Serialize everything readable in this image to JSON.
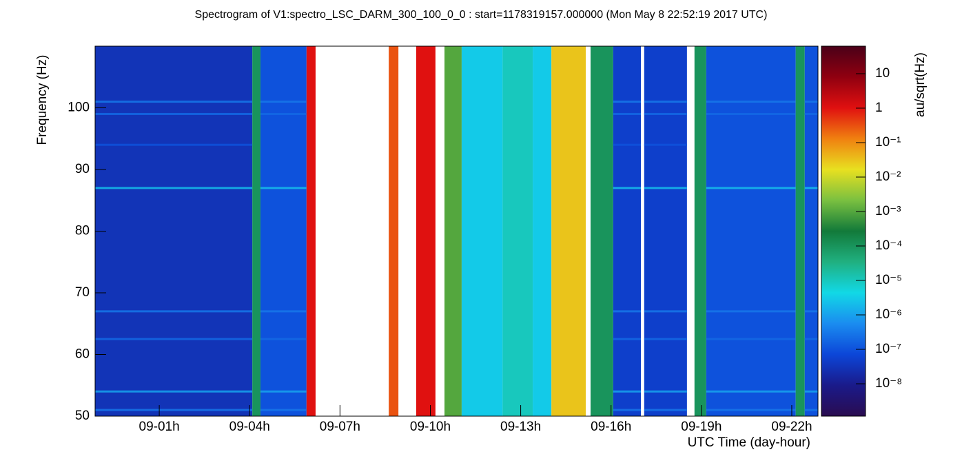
{
  "chart_data": {
    "type": "spectrogram",
    "title": "Spectrogram of V1:spectro_LSC_DARM_300_100_0_0 : start=1178319157.000000 (Mon May  8 22:52:19 2017 UTC)",
    "x_label": "UTC Time (day-hour)",
    "y_label": "Frequency (Hz)",
    "z_label": "au/sqrt(Hz)",
    "xlim": [
      -1.13,
      22.87
    ],
    "xticks": [
      {
        "value": 1,
        "label": "09-01h"
      },
      {
        "value": 4,
        "label": "09-04h"
      },
      {
        "value": 7,
        "label": "09-07h"
      },
      {
        "value": 10,
        "label": "09-10h"
      },
      {
        "value": 13,
        "label": "09-13h"
      },
      {
        "value": 16,
        "label": "09-16h"
      },
      {
        "value": 19,
        "label": "09-19h"
      },
      {
        "value": 22,
        "label": "09-22h"
      }
    ],
    "ylim": [
      50,
      110
    ],
    "yticks": [
      50,
      60,
      70,
      80,
      90,
      100
    ],
    "zlim": [
      1.15e-09,
      63
    ],
    "zscale": "log",
    "zticks": [
      {
        "value": 1e-08,
        "label": "10⁻⁸"
      },
      {
        "value": 1e-07,
        "label": "10⁻⁷"
      },
      {
        "value": 1e-06,
        "label": "10⁻⁶"
      },
      {
        "value": 1e-05,
        "label": "10⁻⁵"
      },
      {
        "value": 0.0001,
        "label": "10⁻⁴"
      },
      {
        "value": 0.001,
        "label": "10⁻³"
      },
      {
        "value": 0.01,
        "label": "10⁻²"
      },
      {
        "value": 0.1,
        "label": "10⁻¹"
      },
      1,
      10
    ],
    "colormap": [
      "#2a0c50",
      "#1a1a8a",
      "#0c46d8",
      "#1a8cf0",
      "#12d8e6",
      "#20b080",
      "#127a3a",
      "#7ac040",
      "#e8e020",
      "#f08010",
      "#e01010",
      "#900010",
      "#4a0018"
    ],
    "segments": [
      {
        "start": -1.13,
        "end": 4.09,
        "level": 3e-08
      },
      {
        "start": 4.09,
        "end": 4.36,
        "level": 0.0001
      },
      {
        "start": 4.36,
        "end": 5.89,
        "level": 1e-07
      },
      {
        "start": 5.89,
        "end": 6.19,
        "level": 1
      },
      {
        "start": 6.19,
        "end": 8.62,
        "level": null
      },
      {
        "start": 8.62,
        "end": 8.94,
        "level": 0.3
      },
      {
        "start": 8.94,
        "end": 9.53,
        "level": null
      },
      {
        "start": 9.53,
        "end": 10.17,
        "level": 1
      },
      {
        "start": 10.17,
        "end": 10.47,
        "level": null
      },
      {
        "start": 10.47,
        "end": 11.04,
        "level": 0.001
      },
      {
        "start": 11.04,
        "end": 12.4,
        "level": 3e-06
      },
      {
        "start": 12.4,
        "end": 13.4,
        "level": 1e-05
      },
      {
        "start": 13.4,
        "end": 14.02,
        "level": 3e-06
      },
      {
        "start": 14.02,
        "end": 15.16,
        "level": 0.03
      },
      {
        "start": 15.16,
        "end": 15.32,
        "level": null
      },
      {
        "start": 15.32,
        "end": 16.07,
        "level": 0.0001
      },
      {
        "start": 16.07,
        "end": 16.99,
        "level": 5e-08
      },
      {
        "start": 16.99,
        "end": 17.1,
        "level": null
      },
      {
        "start": 17.1,
        "end": 18.52,
        "level": 5e-08
      },
      {
        "start": 18.52,
        "end": 18.77,
        "level": null
      },
      {
        "start": 18.77,
        "end": 19.16,
        "level": 0.0001
      },
      {
        "start": 19.16,
        "end": 22.13,
        "level": 1e-07
      },
      {
        "start": 22.13,
        "end": 22.43,
        "level": 0.0001
      },
      {
        "start": 22.43,
        "end": 22.87,
        "level": 1e-07
      }
    ],
    "lines": [
      {
        "frequency": 87,
        "level": 2e-06
      },
      {
        "frequency": 101,
        "level": 3e-07
      },
      {
        "frequency": 99,
        "level": 2e-07
      },
      {
        "frequency": 94,
        "level": 1e-07
      },
      {
        "frequency": 67,
        "level": 3e-07
      },
      {
        "frequency": 62.5,
        "level": 2e-07
      },
      {
        "frequency": 54,
        "level": 1e-06
      },
      {
        "frequency": 51,
        "level": 3e-07
      }
    ]
  }
}
